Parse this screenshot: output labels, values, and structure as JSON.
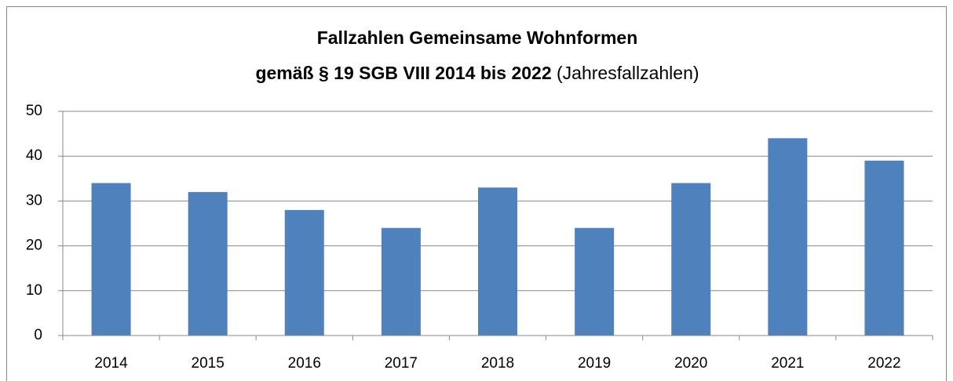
{
  "chart_data": {
    "type": "bar",
    "title": "Fallzahlen Gemeinsame Wohnformen",
    "subtitle": "gemäß § 19 SGB VIII 2014 bis 2022",
    "subtitle_note": "(Jahresfallzahlen)",
    "categories": [
      "2014",
      "2015",
      "2016",
      "2017",
      "2018",
      "2019",
      "2020",
      "2021",
      "2022"
    ],
    "values": [
      34,
      32,
      28,
      24,
      33,
      24,
      34,
      44,
      39
    ],
    "color": "#4f81bd",
    "ylim": [
      0,
      50
    ],
    "yticks": [
      0,
      10,
      20,
      30,
      40,
      50
    ],
    "grid": true
  }
}
